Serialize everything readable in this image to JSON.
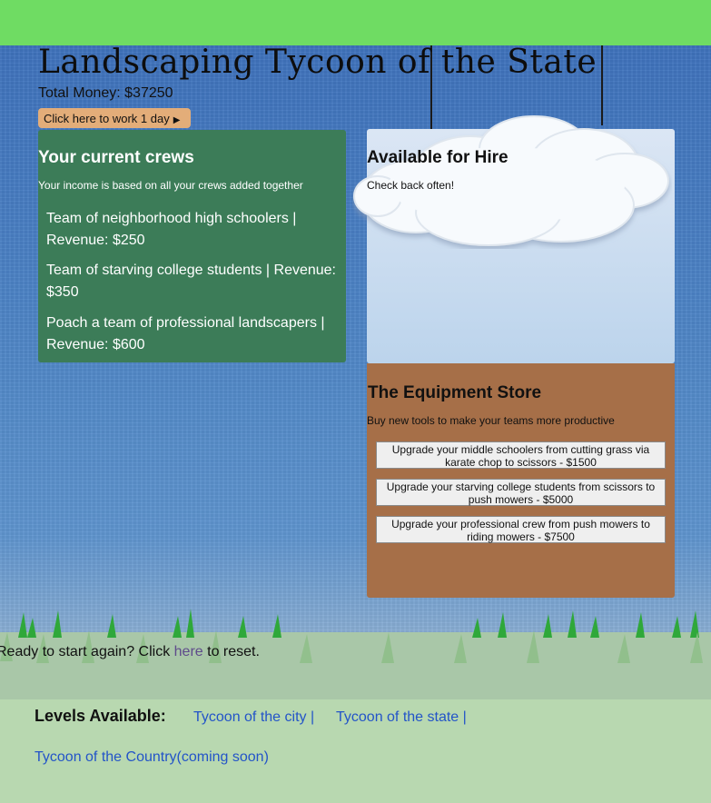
{
  "header": {
    "title": "Landscaping Tycoon of the State",
    "money_text": "Total Money: $37250",
    "work_button": "Click here to work 1 day"
  },
  "crews": {
    "heading": "Your current crews",
    "subtitle": "Your income is based on all your crews added together",
    "items": [
      "Team of neighborhood high schoolers | Revenue: $250",
      "Team of starving college students | Revenue: $350",
      "Poach a team of professional landscapers | Revenue: $600"
    ]
  },
  "hire": {
    "heading": "Available for Hire",
    "subtitle": "Check back often!"
  },
  "store": {
    "heading": "The Equipment Store",
    "subtitle": "Buy new tools to make your teams more productive",
    "upgrades": [
      "Upgrade your middle schoolers from cutting grass via karate chop to scissors - $1500",
      "Upgrade your starving college students from scissors to push mowers - $5000",
      "Upgrade your professional crew from push mowers to riding mowers - $7500"
    ]
  },
  "reset": {
    "before": "Ready to start again? Click ",
    "link": "here",
    "after": " to reset."
  },
  "footer": {
    "label": "Levels Available:",
    "links": [
      "Tycoon of the city |",
      "Tycoon of the state |",
      "Tycoon of the Country(coming soon)"
    ]
  },
  "colors": {
    "top_bar": "#6fdc63",
    "crews_panel": "#3c7c58",
    "store_panel": "#a66f48",
    "work_button": "#e3ad79",
    "footer": "#b8d8b0",
    "link": "#2354c8"
  },
  "icons": {
    "work_arrow": "caret-right-icon",
    "decor_cloud": "cloud-icon",
    "decor_grass": "grass-icon"
  }
}
